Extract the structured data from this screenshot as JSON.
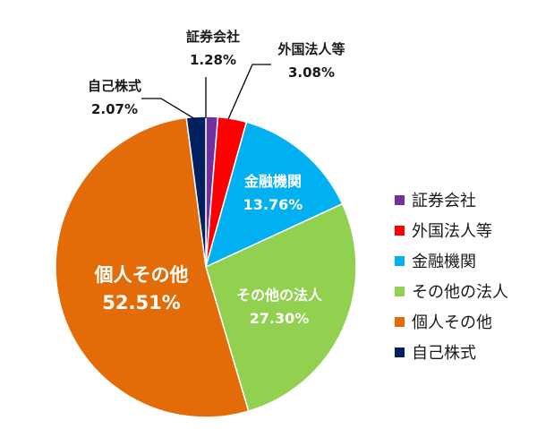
{
  "chart_data": {
    "type": "pie",
    "title": "",
    "series": [
      {
        "name": "証券会社",
        "value": 1.28,
        "label": "1.28%",
        "color": "#7030a0"
      },
      {
        "name": "外国法人等",
        "value": 3.08,
        "label": "3.08%",
        "color": "#ff0000"
      },
      {
        "name": "金融機関",
        "value": 13.76,
        "label": "13.76%",
        "color": "#00b0f0"
      },
      {
        "name": "その他の法人",
        "value": 27.3,
        "label": "27.30%",
        "color": "#92d050"
      },
      {
        "name": "個人その他",
        "value": 52.51,
        "label": "52.51%",
        "color": "#e36c09"
      },
      {
        "name": "自己株式",
        "value": 2.07,
        "label": "2.07%",
        "color": "#002060"
      }
    ],
    "legend_position": "right"
  }
}
